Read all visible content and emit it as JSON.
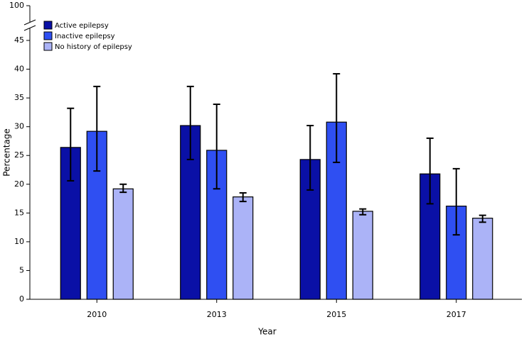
{
  "chart_data": {
    "type": "bar",
    "x_label": "Year",
    "y_label": "Percentage",
    "categories": [
      "2010",
      "2013",
      "2015",
      "2017"
    ],
    "series": [
      {
        "name": "Active epilepsy",
        "color": "#0a10a6",
        "values": [
          26.4,
          30.2,
          24.3,
          21.8
        ],
        "lower": [
          20.6,
          24.3,
          19.0,
          16.6
        ],
        "upper": [
          33.2,
          37.0,
          30.2,
          28.0
        ]
      },
      {
        "name": "Inactive epilepsy",
        "color": "#2f4ff2",
        "values": [
          29.2,
          25.9,
          30.8,
          16.2
        ],
        "lower": [
          22.3,
          19.2,
          23.8,
          11.2
        ],
        "upper": [
          37.0,
          33.9,
          39.2,
          22.7
        ]
      },
      {
        "name": "No history of epilepsy",
        "color": "#abb3f7",
        "values": [
          19.2,
          17.8,
          15.3,
          14.1
        ],
        "lower": [
          18.6,
          17.0,
          14.7,
          13.4
        ],
        "upper": [
          20.0,
          18.5,
          15.7,
          14.6
        ]
      }
    ],
    "ylim": [
      0,
      100
    ],
    "yticks": [
      0,
      5,
      10,
      15,
      20,
      25,
      30,
      35,
      40,
      45,
      100
    ],
    "axis_break": true,
    "legend": "top-left"
  }
}
